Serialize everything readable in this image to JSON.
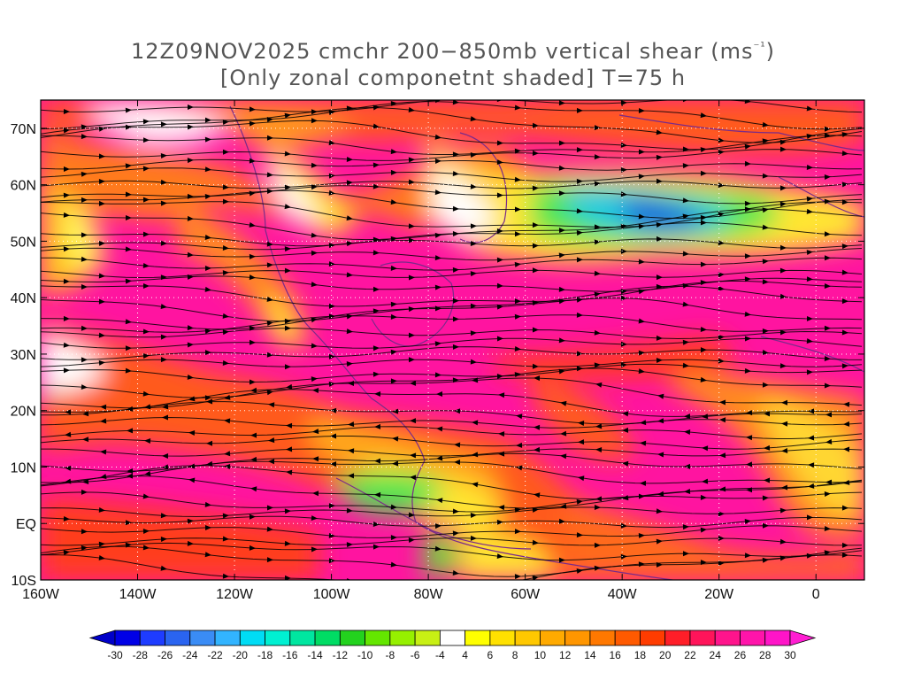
{
  "title": {
    "line1_prefix": "12Z09NOV2025 cmchr 200−850mb vertical shear (ms",
    "line1_sup": "⁻¹",
    "line1_suffix": ")",
    "line2": "[Only zonal componetnt shaded] T=75 h"
  },
  "axes": {
    "lat_labels": [
      "70N",
      "60N",
      "50N",
      "40N",
      "30N",
      "20N",
      "10N",
      "EQ",
      "10S"
    ],
    "lat_values": [
      70,
      60,
      50,
      40,
      30,
      20,
      10,
      0,
      -10
    ],
    "lon_labels": [
      "160W",
      "140W",
      "120W",
      "100W",
      "80W",
      "60W",
      "40W",
      "20W",
      "0"
    ],
    "lon_values": [
      -160,
      -140,
      -120,
      -100,
      -80,
      -60,
      -40,
      -20,
      0
    ],
    "lon_range": [
      -160,
      10
    ],
    "lat_range": [
      -10,
      75
    ]
  },
  "colorbar": {
    "labels": [
      "-30",
      "-28",
      "-26",
      "-24",
      "-22",
      "-20",
      "-18",
      "-16",
      "-14",
      "-12",
      "-10",
      "-8",
      "-6",
      "-4",
      "4",
      "6",
      "8",
      "10",
      "12",
      "14",
      "16",
      "18",
      "20",
      "22",
      "24",
      "26",
      "28",
      "30"
    ],
    "colors": [
      "#0000e6",
      "#1e3cff",
      "#2a64f0",
      "#3a8cf5",
      "#32b4ff",
      "#00dcf5",
      "#00f0d2",
      "#00e6a0",
      "#00dc64",
      "#23d21e",
      "#64e600",
      "#96f000",
      "#c8f014",
      "#ffffff",
      "#ffff00",
      "#ffe100",
      "#ffc800",
      "#ffaa00",
      "#ff9600",
      "#ff7800",
      "#ff5a00",
      "#ff3c00",
      "#ff1e28",
      "#ff145a",
      "#ff148c",
      "#ff14aa",
      "#ff14c8"
    ],
    "low_color": "#0000c8",
    "high_color": "#ff1ed2"
  },
  "colors": {
    "accent_magenta": "#ff14a0",
    "accent_red": "#f03c1e",
    "accent_orange": "#ff8c1e",
    "accent_yellow": "#ffe632",
    "accent_green": "#32dc64",
    "accent_blue": "#1e50dc",
    "coast": "#7a2a8a"
  }
}
